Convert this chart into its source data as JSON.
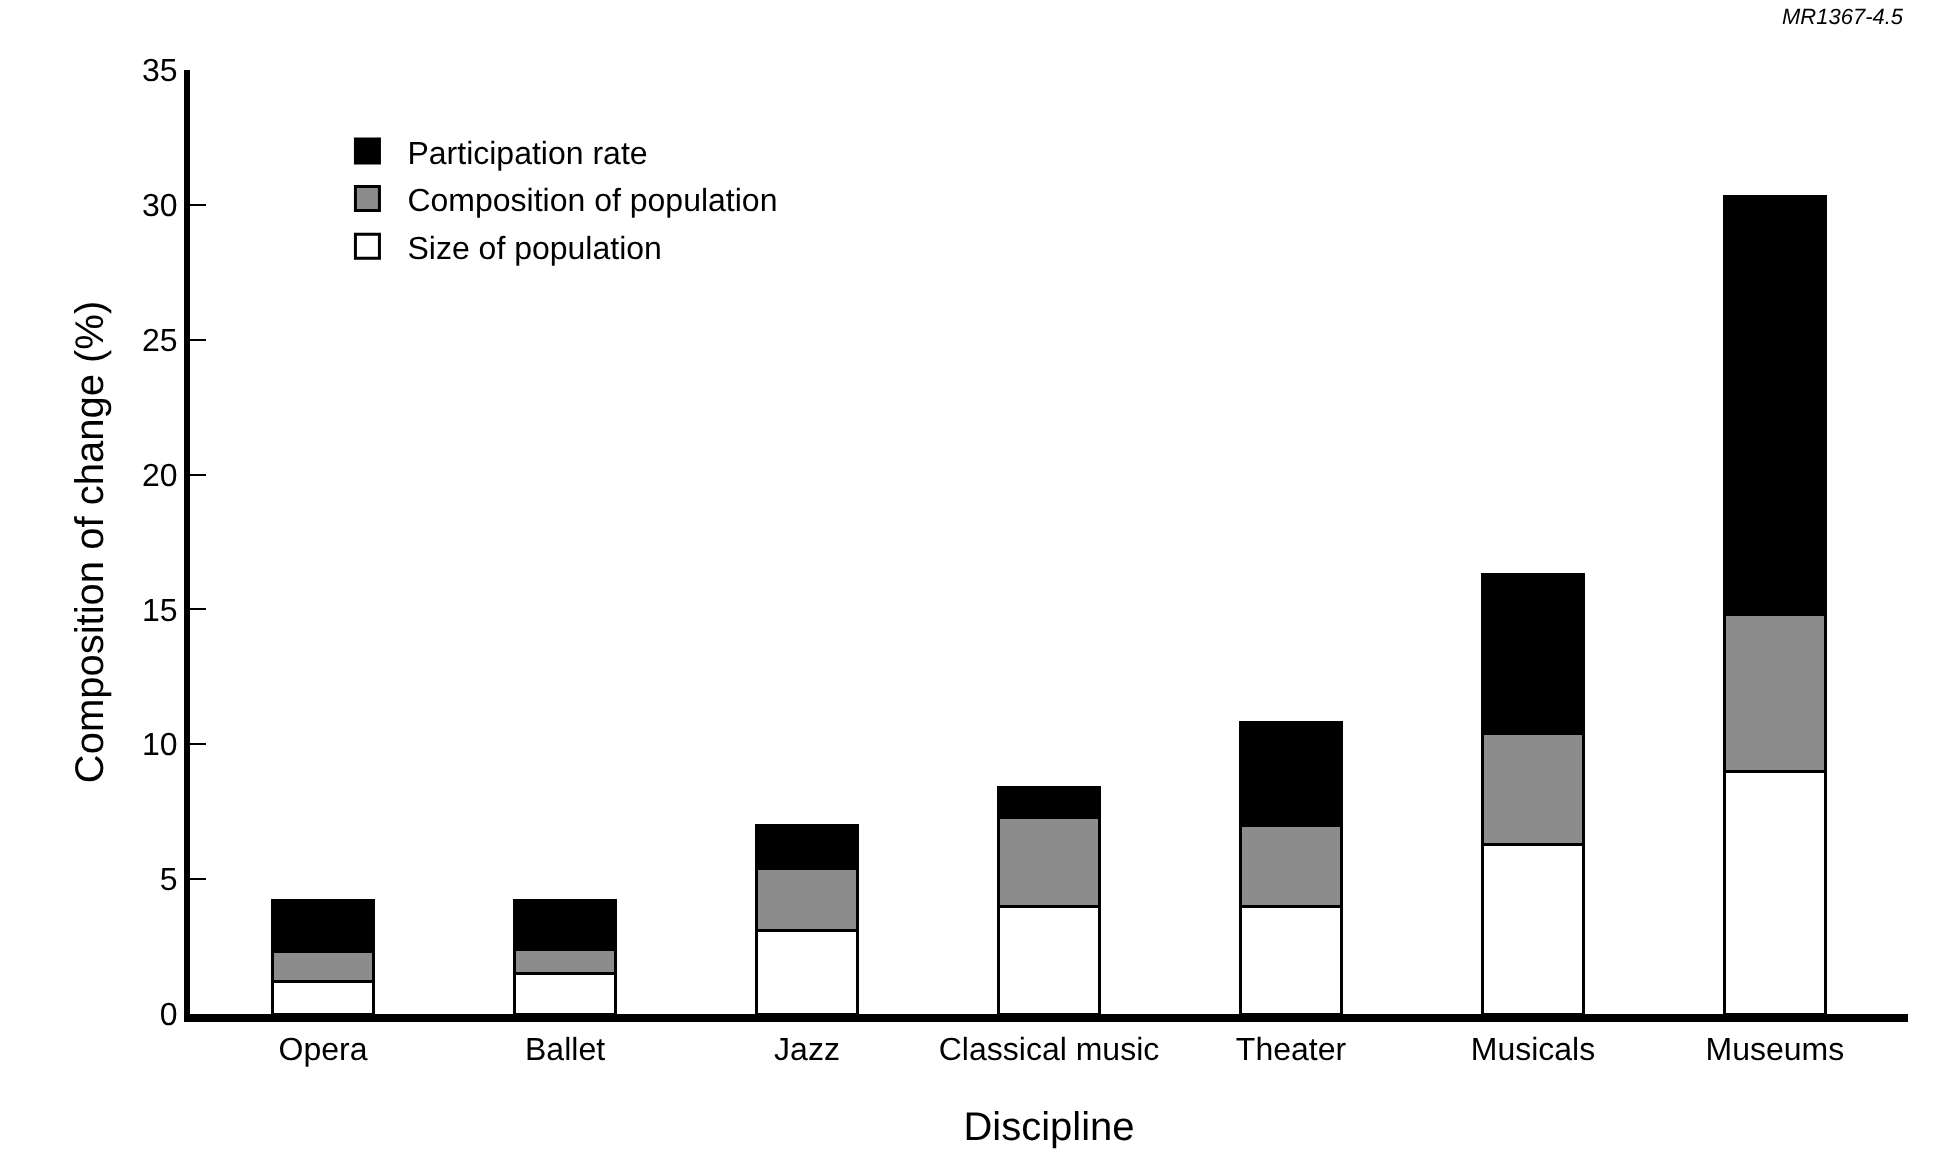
{
  "chart_data": {
    "type": "bar",
    "stacked": true,
    "xlabel": "Discipline",
    "ylabel": "Composition of change (%)",
    "categories": [
      "Opera",
      "Ballet",
      "Jazz",
      "Classical music",
      "Theater",
      "Musicals",
      "Museums"
    ],
    "series": [
      {
        "name": "Size of population",
        "color": "#ffffff",
        "values": [
          1.2,
          1.5,
          3.1,
          4.0,
          4.0,
          6.3,
          9.0
        ]
      },
      {
        "name": "Composition of population",
        "color": "#8c8c8c",
        "values": [
          1.1,
          0.9,
          2.3,
          3.3,
          3.0,
          4.1,
          5.8
        ]
      },
      {
        "name": "Participation rate",
        "color": "#000000",
        "values": [
          1.9,
          1.8,
          1.6,
          1.1,
          3.8,
          5.9,
          15.5
        ]
      }
    ],
    "ylim": [
      0,
      35
    ],
    "yticks": [
      0,
      5,
      10,
      15,
      20,
      25,
      30,
      35
    ],
    "legend": "top left",
    "annotations": [
      "MR1367-4.5"
    ]
  }
}
